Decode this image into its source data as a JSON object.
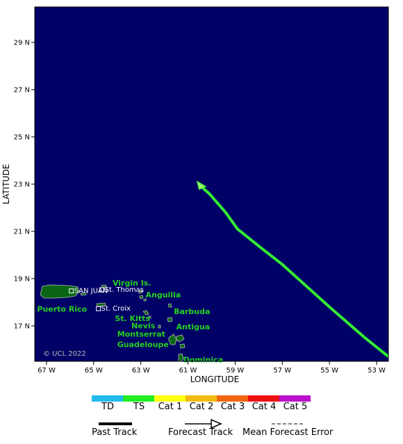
{
  "map": {
    "x_axis": {
      "label": "LONGITUDE",
      "ticks": [
        {
          "lon": -67,
          "label": "67 W"
        },
        {
          "lon": -65,
          "label": "65 W"
        },
        {
          "lon": -63,
          "label": "63 W"
        },
        {
          "lon": -61,
          "label": "61 W"
        },
        {
          "lon": -59,
          "label": "59 W"
        },
        {
          "lon": -57,
          "label": "57 W"
        },
        {
          "lon": -55,
          "label": "55 W"
        },
        {
          "lon": -53,
          "label": "53 W"
        }
      ],
      "range": [
        -67.5,
        -52.5
      ]
    },
    "y_axis": {
      "label": "LATITUDE",
      "ticks": [
        {
          "lat": 29,
          "label": "29 N"
        },
        {
          "lat": 27,
          "label": "27 N"
        },
        {
          "lat": 25,
          "label": "25 N"
        },
        {
          "lat": 23,
          "label": "23 N"
        },
        {
          "lat": 21,
          "label": "21 N"
        },
        {
          "lat": 19,
          "label": "19 N"
        },
        {
          "lat": 17,
          "label": "17 N"
        }
      ],
      "range": [
        15.5,
        30.5
      ]
    },
    "ocean_color": "#000066",
    "land_color": "#0a6614",
    "track": {
      "category": "TS",
      "color": "#33ee33",
      "points": [
        [
          -52.5,
          15.7
        ],
        [
          -53.5,
          16.5
        ],
        [
          -55,
          17.8
        ],
        [
          -56,
          18.7
        ],
        [
          -57,
          19.6
        ],
        [
          -57.9,
          20.3
        ],
        [
          -58.9,
          21.1
        ],
        [
          -59.4,
          21.8
        ],
        [
          -60.1,
          22.6
        ],
        [
          -60.5,
          22.95
        ]
      ]
    },
    "places": [
      {
        "name": "Virgin Is.",
        "lon": -64.2,
        "lat": 18.7
      },
      {
        "name": "Anguilla",
        "lon": -62.8,
        "lat": 18.2
      },
      {
        "name": "Puerto Rico",
        "lon": -67.4,
        "lat": 17.6
      },
      {
        "name": "Barbuda",
        "lon": -61.6,
        "lat": 17.5
      },
      {
        "name": "St. Kitts",
        "lon": -64.1,
        "lat": 17.2
      },
      {
        "name": "Nevis",
        "lon": -63.4,
        "lat": 16.9
      },
      {
        "name": "Antigua",
        "lon": -61.5,
        "lat": 16.85
      },
      {
        "name": "Montserrat",
        "lon": -64.0,
        "lat": 16.55
      },
      {
        "name": "Guadeloupe",
        "lon": -64.0,
        "lat": 16.1
      },
      {
        "name": "Dominica",
        "lon": -61.2,
        "lat": 15.45
      }
    ],
    "cities": [
      {
        "name": "SAN JUAN",
        "lon": -65.95,
        "lat": 18.45
      },
      {
        "name": "St. Thomas",
        "lon": -64.65,
        "lat": 18.5
      },
      {
        "name": "St. Croix",
        "lon": -64.8,
        "lat": 17.7
      }
    ],
    "copyright": "© UCL 2022"
  },
  "legend": {
    "categories": [
      {
        "label": "TD",
        "color": "#22bbee"
      },
      {
        "label": "TS",
        "color": "#22ee22"
      },
      {
        "label": "Cat 1",
        "color": "#ffff11"
      },
      {
        "label": "Cat 2",
        "color": "#f2bb11"
      },
      {
        "label": "Cat 3",
        "color": "#f26611"
      },
      {
        "label": "Cat 4",
        "color": "#ee1111"
      },
      {
        "label": "Cat 5",
        "color": "#bb11cc"
      }
    ],
    "past_track": "Past Track",
    "forecast_track": "Forecast Track",
    "mean_error": "Mean Forecast Error"
  }
}
